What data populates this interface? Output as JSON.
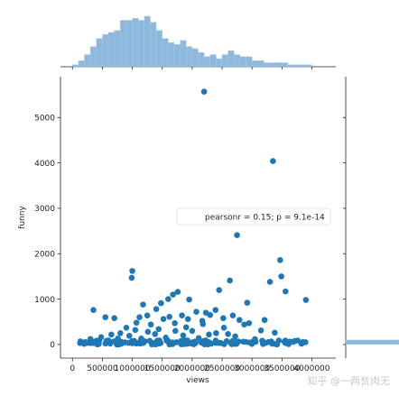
{
  "chart_data": {
    "type": "scatter",
    "title": "",
    "xlabel": "views",
    "ylabel": "funny",
    "xlim": [
      -200000,
      4400000
    ],
    "ylim": [
      -300,
      5900
    ],
    "x_ticks": [
      0,
      500000,
      1000000,
      1500000,
      2000000,
      2500000,
      3000000,
      3500000,
      4000000
    ],
    "x_tick_labels": [
      "0",
      "500000",
      "1000000",
      "1500000",
      "2000000",
      "2500000",
      "3000000",
      "3500000",
      "4000000"
    ],
    "y_ticks": [
      0,
      1000,
      2000,
      3000,
      4000,
      5000
    ],
    "y_tick_labels": [
      "0",
      "1000",
      "2000",
      "3000",
      "4000",
      "5000"
    ],
    "grid": false,
    "annotation": "pearsonr = 0.15; p = 9.1e-14",
    "color": "#1f77b4",
    "points": [
      [
        2200000,
        5570
      ],
      [
        3350000,
        4040
      ],
      [
        2750000,
        2410
      ],
      [
        3470000,
        1860
      ],
      [
        3490000,
        1500
      ],
      [
        3560000,
        1170
      ],
      [
        3900000,
        980
      ],
      [
        3300000,
        1380
      ],
      [
        2630000,
        1410
      ],
      [
        2920000,
        920
      ],
      [
        2450000,
        1200
      ],
      [
        1760000,
        1160
      ],
      [
        1950000,
        990
      ],
      [
        1000000,
        1620
      ],
      [
        990000,
        1470
      ],
      [
        350000,
        760
      ],
      [
        550000,
        600
      ],
      [
        700000,
        580
      ],
      [
        1180000,
        880
      ],
      [
        1400000,
        780
      ],
      [
        1480000,
        910
      ],
      [
        1600000,
        1000
      ],
      [
        1680000,
        1100
      ],
      [
        1830000,
        640
      ],
      [
        2070000,
        720
      ],
      [
        2230000,
        700
      ],
      [
        2300000,
        650
      ],
      [
        2390000,
        760
      ],
      [
        2520000,
        580
      ],
      [
        2680000,
        640
      ],
      [
        2790000,
        540
      ],
      [
        2950000,
        470
      ],
      [
        3150000,
        310
      ],
      [
        3210000,
        540
      ],
      [
        3380000,
        260
      ],
      [
        2870000,
        440
      ],
      [
        2530000,
        370
      ],
      [
        2170000,
        520
      ],
      [
        1900000,
        380
      ],
      [
        1710000,
        470
      ],
      [
        1520000,
        560
      ],
      [
        1310000,
        440
      ],
      [
        1120000,
        600
      ],
      [
        1050000,
        320
      ],
      [
        900000,
        370
      ],
      [
        800000,
        250
      ],
      [
        650000,
        220
      ],
      [
        480000,
        160
      ],
      [
        300000,
        120
      ],
      [
        1250000,
        640
      ],
      [
        1620000,
        610
      ],
      [
        2000000,
        300
      ],
      [
        2600000,
        230
      ],
      [
        2400000,
        250
      ],
      [
        1380000,
        230
      ],
      [
        1560000,
        150
      ],
      [
        1850000,
        200
      ],
      [
        1150000,
        130
      ],
      [
        950000,
        190
      ],
      [
        760000,
        130
      ],
      [
        2110000,
        140
      ],
      [
        2280000,
        220
      ],
      [
        2720000,
        180
      ],
      [
        3050000,
        120
      ],
      [
        1720000,
        300
      ],
      [
        1440000,
        340
      ],
      [
        1260000,
        280
      ],
      [
        600000,
        90
      ],
      [
        420000,
        60
      ],
      [
        1930000,
        560
      ],
      [
        2180000,
        450
      ],
      [
        1070000,
        480
      ]
    ],
    "dense_band": {
      "x_range": [
        100000,
        4000000
      ],
      "y_range": [
        0,
        90
      ],
      "count": 160
    },
    "marginal_x_hist": {
      "bin_edges_start": 0,
      "bin_width": 100000,
      "counts": [
        1,
        3,
        6,
        10,
        14,
        16,
        17,
        18,
        23,
        23,
        24,
        23,
        25,
        22,
        18,
        14,
        12,
        11,
        13,
        10,
        9,
        7,
        5,
        6,
        4,
        6,
        8,
        6,
        5,
        5,
        3,
        3,
        2,
        2,
        2,
        2,
        1,
        1,
        1,
        1
      ]
    },
    "marginal_y_hist": {
      "bin_width": 100,
      "counts_max_bin": 1
    }
  },
  "watermark": "知乎 @一两贫肉无"
}
